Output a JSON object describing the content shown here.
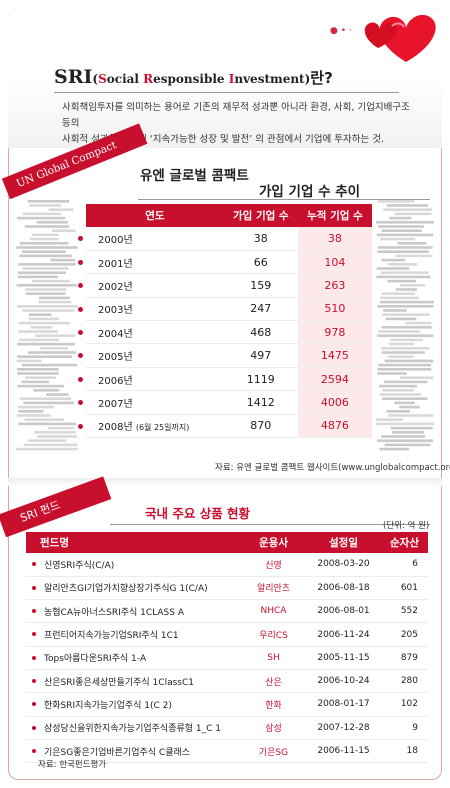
{
  "intro": {
    "title_acronym": "SRI",
    "title_open": "(",
    "title_word1_initial": "S",
    "title_word1_rest": "ocial ",
    "title_word2_initial": "R",
    "title_word2_rest": "esponsible ",
    "title_word3_initial": "I",
    "title_word3_rest": "nvestment",
    "title_close": ")",
    "title_suffix": "란?",
    "description_line1": "사회책임투자를 의미하는 용어로 기존의 재무적 성과뿐 아니라  환경, 사회, 기업지배구조 등의",
    "description_line2": "사회적 성과를 고려해 ‘지속가능한 성장 및 발전’ 의 관점에서 기업에 투자하는 것."
  },
  "section1": {
    "ribbon": "UN Global Compact",
    "title": "유엔 글로벌 콤팩트",
    "subtitle": "가입 기업 수 추이",
    "headers": [
      "연도",
      "가입 기업 수",
      "누적 기업 수"
    ],
    "rows": [
      {
        "year": "2000년",
        "note": "",
        "joined": "38",
        "cumulative": "38"
      },
      {
        "year": "2001년",
        "note": "",
        "joined": "66",
        "cumulative": "104"
      },
      {
        "year": "2002년",
        "note": "",
        "joined": "159",
        "cumulative": "263"
      },
      {
        "year": "2003년",
        "note": "",
        "joined": "247",
        "cumulative": "510"
      },
      {
        "year": "2004년",
        "note": "",
        "joined": "468",
        "cumulative": "978"
      },
      {
        "year": "2005년",
        "note": "",
        "joined": "497",
        "cumulative": "1475"
      },
      {
        "year": "2006년",
        "note": "",
        "joined": "1119",
        "cumulative": "2594"
      },
      {
        "year": "2007년",
        "note": "",
        "joined": "1412",
        "cumulative": "4006"
      },
      {
        "year": "2008년",
        "note": "(6월 25일까지)",
        "joined": "870",
        "cumulative": "4876"
      }
    ],
    "source": "자료: 유엔 글로벌 콤팩트 웹사이트(www.unglobalcompact.org)"
  },
  "section2": {
    "ribbon": "SRI 펀드",
    "title": "국내 주요 상품 현황",
    "unit": "(단위: 억 원)",
    "headers": [
      "펀드명",
      "운용사",
      "설정일",
      "순자산"
    ],
    "rows": [
      {
        "name": "신영SRI주식(C/A)",
        "manager": "신영",
        "date": "2008-03-20",
        "assets": "6"
      },
      {
        "name": "알리안츠GI기업가치향상장기주식G 1(C/A)",
        "manager": "알리안츠",
        "date": "2006-08-18",
        "assets": "601"
      },
      {
        "name": "농협CA뉴아너스SRI주식 1CLASS A",
        "manager": "NHCA",
        "date": "2006-08-01",
        "assets": "552"
      },
      {
        "name": "프런티어지속가능기업SRI주식 1C1",
        "manager": "우리CS",
        "date": "2006-11-24",
        "assets": "205"
      },
      {
        "name": "Tops아름다운SRI주식 1-A",
        "manager": "SH",
        "date": "2005-11-15",
        "assets": "879"
      },
      {
        "name": "산은SRI좋은세상만들기주식 1ClassC1",
        "manager": "산은",
        "date": "2006-10-24",
        "assets": "280"
      },
      {
        "name": "한화SRI지속가능기업주식 1(C 2)",
        "manager": "한화",
        "date": "2008-01-17",
        "assets": "102"
      },
      {
        "name": "삼성당신을위한지속가능기업주식종류형 1_C 1",
        "manager": "삼성",
        "date": "2007-12-28",
        "assets": "9"
      },
      {
        "name": "기은SG좋은기업바른기업주식 C클래스",
        "manager": "기은SG",
        "date": "2006-11-15",
        "assets": "18"
      }
    ],
    "source": "자료: 한국펀드평가"
  },
  "colors": {
    "accent": "#c8102e",
    "accent_light": "#fde8ea",
    "heart": "#e8142c"
  }
}
